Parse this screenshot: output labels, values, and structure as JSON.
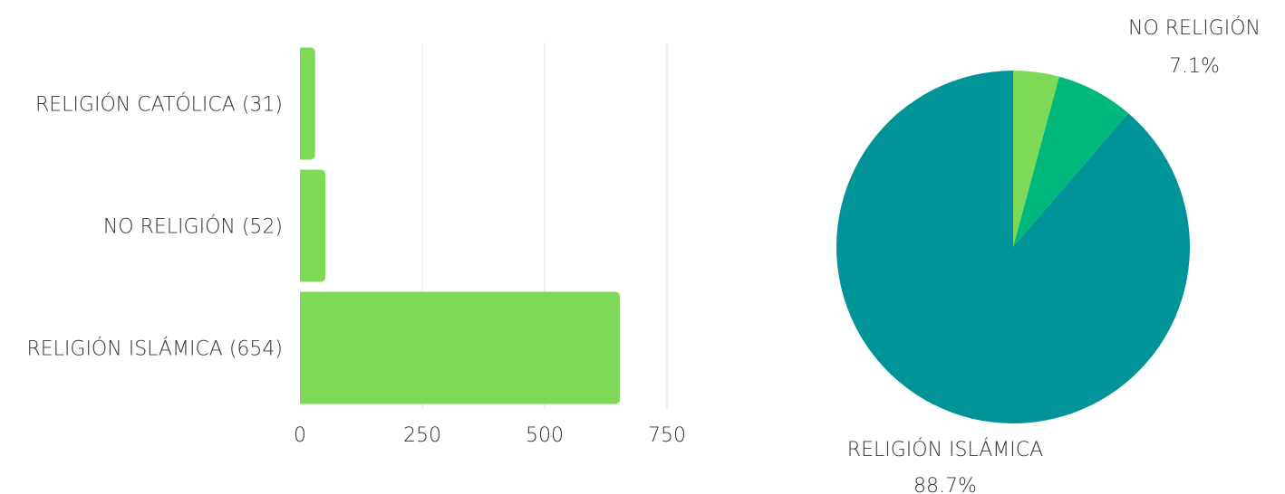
{
  "chart_data": [
    {
      "type": "bar",
      "orientation": "horizontal",
      "categories": [
        "RELIGIÓN CATÓLICA (31)",
        "NO RELIGIÓN (52)",
        "RELIGIÓN ISLÁMICA (654)"
      ],
      "values": [
        31,
        52,
        654
      ],
      "xlim": [
        0,
        750
      ],
      "x_ticks": [
        "0",
        "250",
        "500",
        "750"
      ],
      "grid": "vertical",
      "bar_color": "#7ed957"
    },
    {
      "type": "pie",
      "slices": [
        {
          "key": "catolica",
          "value": 4.2,
          "color": "#7ed957",
          "label": "",
          "pct_label": ""
        },
        {
          "key": "no",
          "value": 7.1,
          "color": "#00b87c",
          "label": "NO RELIGIÓN",
          "pct_label": "7.1%"
        },
        {
          "key": "islamica",
          "value": 88.7,
          "color": "#009499",
          "label": "RELIGIÓN ISLÁMICA",
          "pct_label": "88.7%"
        }
      ]
    }
  ]
}
